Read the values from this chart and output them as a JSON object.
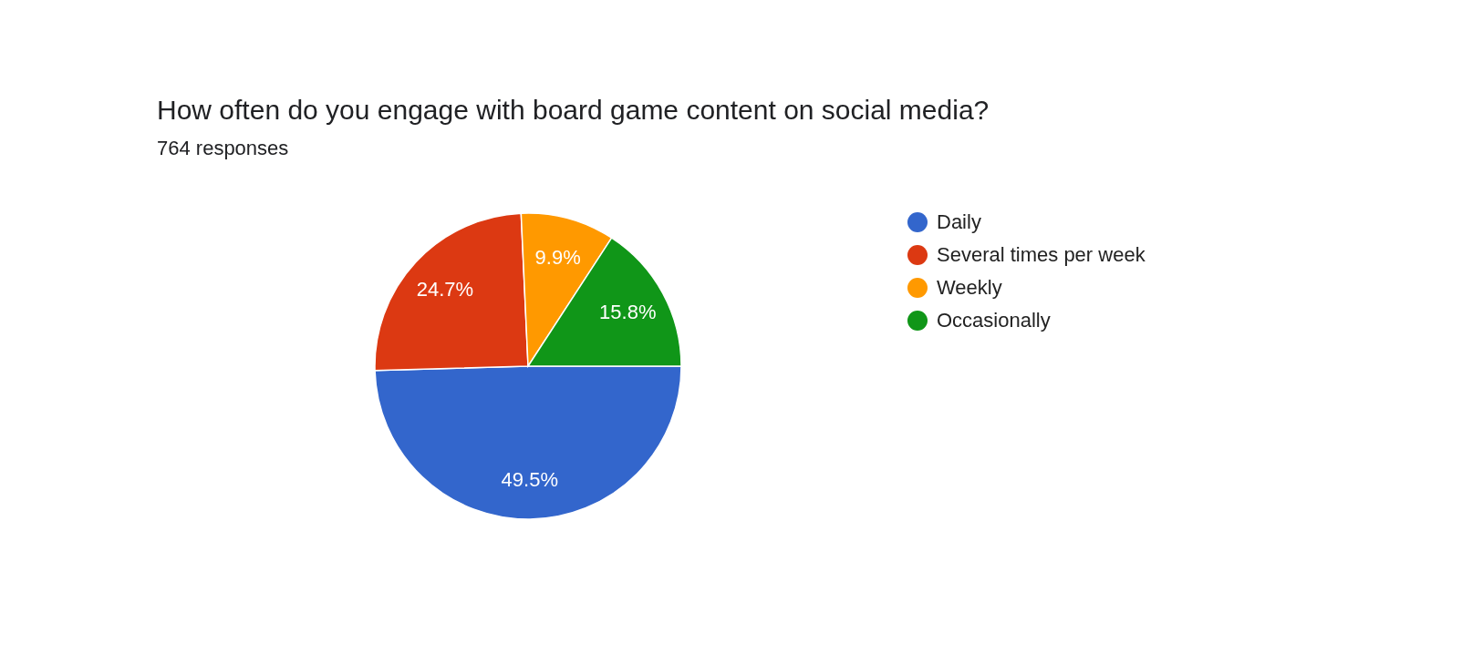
{
  "chart_data": {
    "type": "pie",
    "title": "How often do you engage with board game content on social media?",
    "subtitle": "764 responses",
    "categories": [
      "Daily",
      "Several times per week",
      "Weekly",
      "Occasionally"
    ],
    "values": [
      49.5,
      24.7,
      9.9,
      15.8
    ],
    "colors": [
      "#3366cc",
      "#dc3912",
      "#ff9900",
      "#109618"
    ],
    "value_labels": [
      "49.5%",
      "24.7%",
      "9.9%",
      "15.8%"
    ],
    "legend": "right"
  }
}
